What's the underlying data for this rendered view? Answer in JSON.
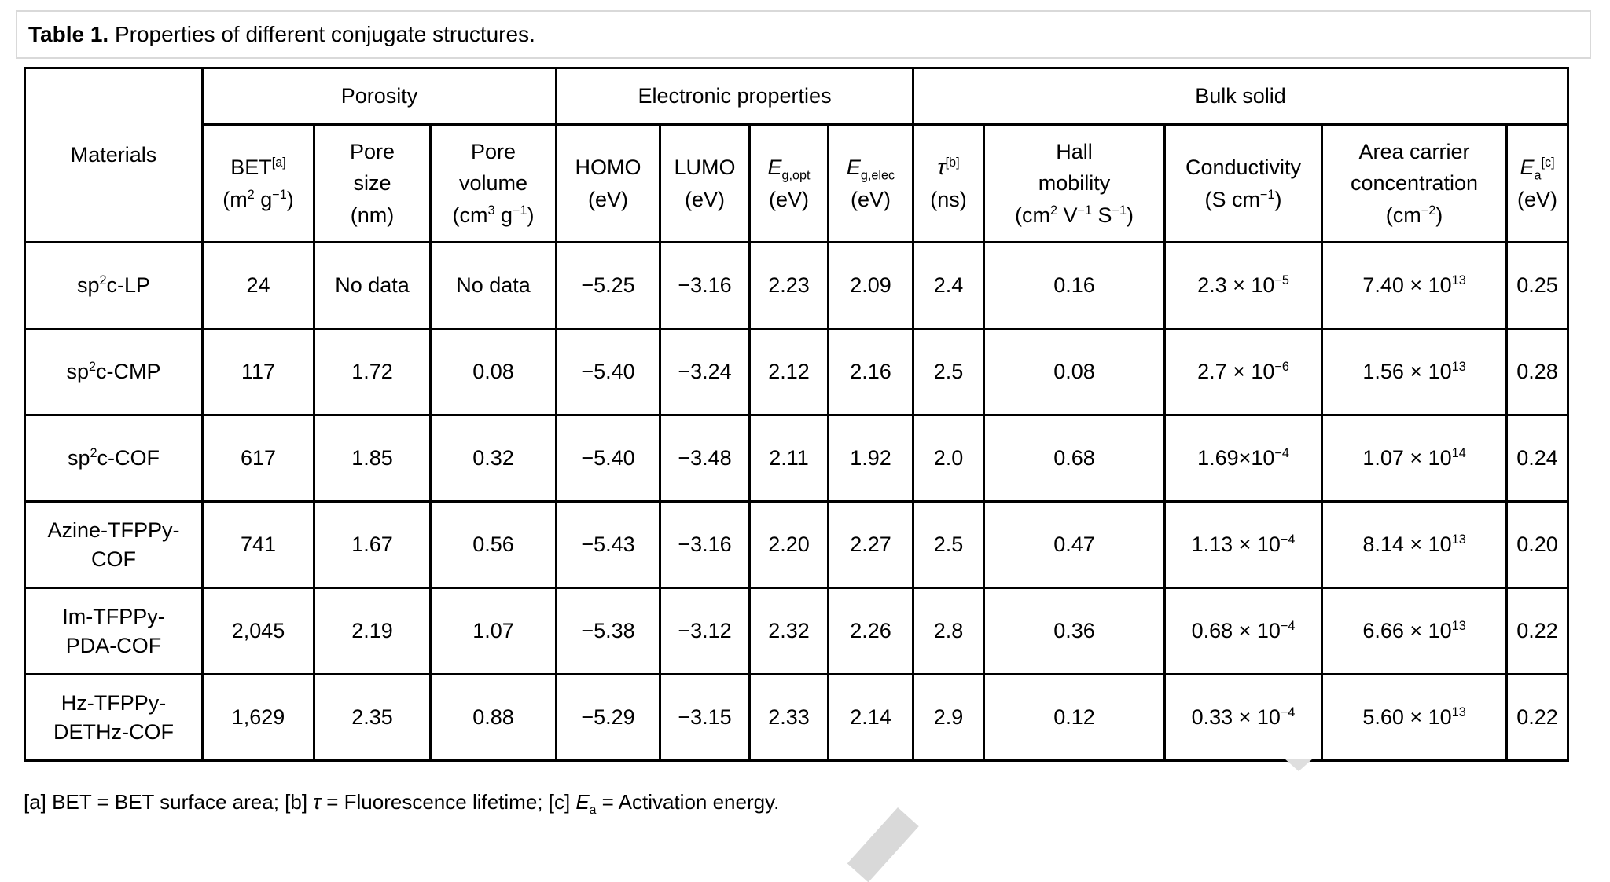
{
  "caption": {
    "label": "Table 1.",
    "text": " Properties of different conjugate structures."
  },
  "colors": {
    "table_border": "#000000",
    "caption_border": "#d9d9d9",
    "watermark_gray": "#d9d9d9"
  },
  "table": {
    "corner_header": "Materials",
    "groups": [
      {
        "label": "Porosity"
      },
      {
        "label": "Electronic properties"
      },
      {
        "label": "Bulk solid"
      }
    ],
    "columns": [
      {
        "name": "bet",
        "html": "BET<sup>[a]</sup><br>(m<sup>2</sup> g<sup>−1</sup>)"
      },
      {
        "name": "pore-size",
        "html": "Pore<br>size<br>(nm)"
      },
      {
        "name": "pore-volume",
        "html": "Pore<br>volume<br>(cm<sup>3</sup> g<sup>−1</sup>)"
      },
      {
        "name": "homo",
        "html": "HOMO<br>(eV)"
      },
      {
        "name": "lumo",
        "html": "LUMO<br>(eV)"
      },
      {
        "name": "eg-opt",
        "html": "<i>E</i><sub>g,opt</sub><br>(eV)"
      },
      {
        "name": "eg-elec",
        "html": "<i>E</i><sub>g,elec</sub><br>(eV)"
      },
      {
        "name": "tau",
        "html": "<i>τ</i><sup>[b]</sup><br>(ns)"
      },
      {
        "name": "hall-mobility",
        "html": "Hall<br>mobility<br>(cm<sup>2</sup> V<sup>−1</sup> S<sup>−1</sup>)"
      },
      {
        "name": "conductivity",
        "html": "Conductivity<br>(S cm<sup>−1</sup>)"
      },
      {
        "name": "area-carrier",
        "html": "Area carrier<br>concentration<br>(cm<sup>−2</sup>)"
      },
      {
        "name": "ea",
        "html": "<i>E</i><sub>a</sub><sup>[c]</sup><br>(eV)"
      }
    ],
    "rows": [
      {
        "material": "sp<sup>2</sup>c-LP",
        "cells": [
          "24",
          "No data",
          "No data",
          "−5.25",
          "−3.16",
          "2.23",
          "2.09",
          "2.4",
          "0.16",
          "2.3 × 10<sup>−5</sup>",
          "7.40 × 10<sup>13</sup>",
          "0.25"
        ]
      },
      {
        "material": "sp<sup>2</sup>c-CMP",
        "cells": [
          "117",
          "1.72",
          "0.08",
          "−5.40",
          "−3.24",
          "2.12",
          "2.16",
          "2.5",
          "0.08",
          "2.7 × 10<sup>−6</sup>",
          "1.56 × 10<sup>13</sup>",
          "0.28"
        ]
      },
      {
        "material": "sp<sup>2</sup>c-COF",
        "cells": [
          "617",
          "1.85",
          "0.32",
          "−5.40",
          "−3.48",
          "2.11",
          "1.92",
          "2.0",
          "0.68",
          "1.69×10<sup>−4</sup>",
          "1.07 × 10<sup>14</sup>",
          "0.24"
        ]
      },
      {
        "material": "Azine-TFPPy-<br>COF",
        "cells": [
          "741",
          "1.67",
          "0.56",
          "−5.43",
          "−3.16",
          "2.20",
          "2.27",
          "2.5",
          "0.47",
          "1.13 × 10<sup>−4</sup>",
          "8.14 × 10<sup>13</sup>",
          "0.20"
        ]
      },
      {
        "material": "Im-TFPPy-<br>PDA-COF",
        "cells": [
          "2,045",
          "2.19",
          "1.07",
          "−5.38",
          "−3.12",
          "2.32",
          "2.26",
          "2.8",
          "0.36",
          "0.68 × 10<sup>−4</sup>",
          "6.66 × 10<sup>13</sup>",
          "0.22"
        ]
      },
      {
        "material": "Hz-TFPPy-<br>DETHz-COF",
        "cells": [
          "1,629",
          "2.35",
          "0.88",
          "−5.29",
          "−3.15",
          "2.33",
          "2.14",
          "2.9",
          "0.12",
          "0.33 × 10<sup>−4</sup>",
          "5.60 × 10<sup>13</sup>",
          "0.22"
        ]
      }
    ]
  },
  "footnote_html": "[a] BET = BET surface area; [b] <i>τ</i> = Fluorescence lifetime; [c] <i>E</i><sub>a</sub> = Activation energy."
}
